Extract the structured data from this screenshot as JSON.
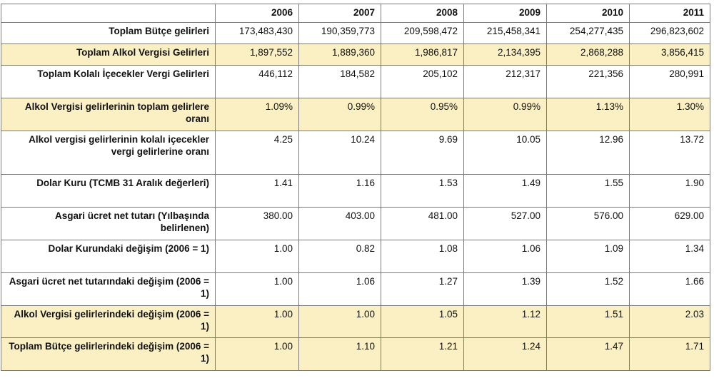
{
  "table": {
    "corner": "",
    "years": [
      "2006",
      "2007",
      "2008",
      "2009",
      "2010",
      "2011"
    ],
    "rows": [
      {
        "label": "Toplam Bütçe gelirleri",
        "values": [
          "173,483,430",
          "190,359,773",
          "209,598,472",
          "215,458,341",
          "254,277,435",
          "296,823,602"
        ],
        "highlight": false
      },
      {
        "label": "Toplam Alkol Vergisi Gelirleri",
        "values": [
          "1,897,552",
          "1,889,360",
          "1,986,817",
          "2,134,395",
          "2,868,288",
          "3,856,415"
        ],
        "highlight": true
      },
      {
        "label": "Toplam Kolalı İçecekler Vergi Gelirleri",
        "values": [
          "446,112",
          "184,582",
          "205,102",
          "212,317",
          "221,356",
          "280,991"
        ],
        "highlight": false
      },
      {
        "label": "Alkol Vergisi gelirlerinin toplam gelirlere oranı",
        "values": [
          "1.09%",
          "0.99%",
          "0.95%",
          "0.99%",
          "1.13%",
          "1.30%"
        ],
        "highlight": true
      },
      {
        "label": "Alkol vergisi gelirlerinin kolalı içecekler vergi gelirlerine oranı",
        "values": [
          "4.25",
          "10.24",
          "9.69",
          "10.05",
          "12.96",
          "13.72"
        ],
        "highlight": false
      },
      {
        "label": "Dolar Kuru (TCMB 31 Aralık değerleri)",
        "values": [
          "1.41",
          "1.16",
          "1.53",
          "1.49",
          "1.55",
          "1.90"
        ],
        "highlight": false
      },
      {
        "label": "Asgari ücret net tutarı (Yılbaşında belirlenen)",
        "values": [
          "380.00",
          "403.00",
          "481.00",
          "527.00",
          "576.00",
          "629.00"
        ],
        "highlight": false
      },
      {
        "label": "Dolar Kurundaki değişim (2006 = 1)",
        "values": [
          "1.00",
          "0.82",
          "1.08",
          "1.06",
          "1.09",
          "1.34"
        ],
        "highlight": false
      },
      {
        "label": "Asgari ücret net tutarındaki değişim (2006 = 1)",
        "values": [
          "1.00",
          "1.06",
          "1.27",
          "1.39",
          "1.52",
          "1.66"
        ],
        "highlight": false
      },
      {
        "label": "Alkol Vergisi gelirlerindeki değişim (2006 = 1)",
        "values": [
          "1.00",
          "1.00",
          "1.05",
          "1.12",
          "1.51",
          "2.03"
        ],
        "highlight": true
      },
      {
        "label": "Toplam Bütçe gelirlerindeki değişim (2006 = 1)",
        "values": [
          "1.00",
          "1.10",
          "1.21",
          "1.24",
          "1.47",
          "1.71"
        ],
        "highlight": true
      }
    ]
  },
  "colors": {
    "highlight_row": "#fbf0c4",
    "border": "#7a7a7a"
  }
}
